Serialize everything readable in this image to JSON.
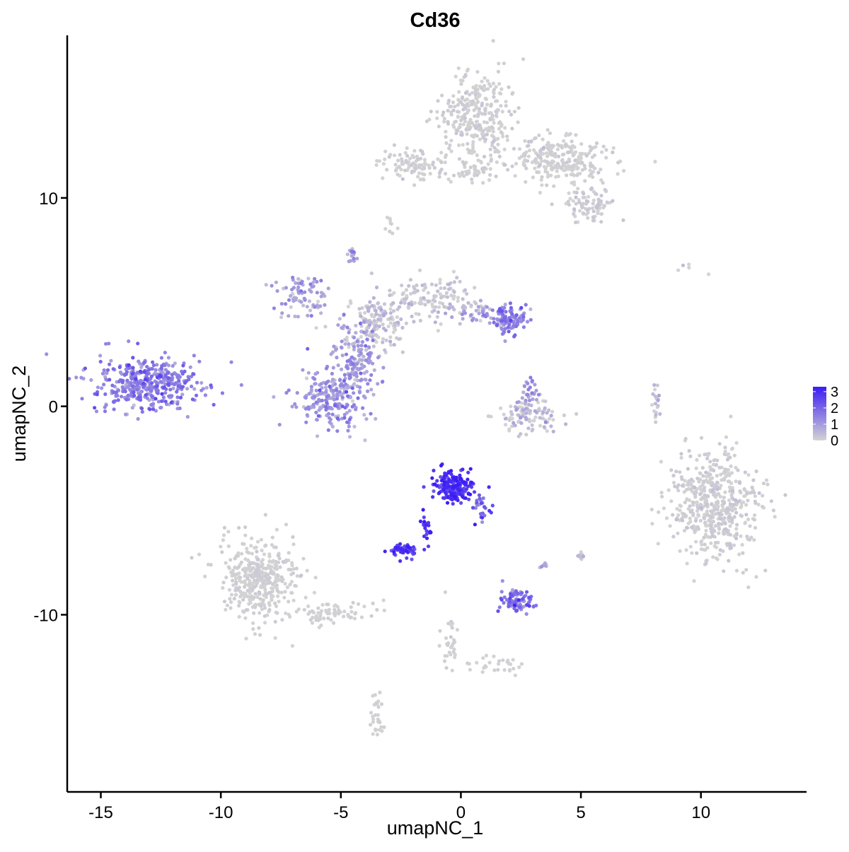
{
  "chart_data": {
    "type": "scatter",
    "title": "Cd36",
    "xlabel": "umapNC_1",
    "ylabel": "umapNC_2",
    "xlim": [
      -16.4,
      14.4
    ],
    "ylim": [
      -18.5,
      17.8
    ],
    "xticks": [
      -15,
      -10,
      -5,
      0,
      5,
      10
    ],
    "xtick_labels": [
      "-15",
      "-10",
      "-5",
      "0",
      "5",
      "10"
    ],
    "yticks": [
      -10,
      0,
      10
    ],
    "ytick_labels": [
      "-10",
      "0",
      "10"
    ],
    "grid": false,
    "legend": {
      "placement": "right",
      "ticks": [
        0,
        1,
        2,
        3
      ],
      "tick_labels": [
        "0",
        "1",
        "2",
        "3"
      ],
      "min": 0,
      "max": 3.3,
      "low_color": "#d3d3d3",
      "high_color": "#3b1cf5"
    },
    "colors": {
      "low": "#d3d3d3",
      "high": "#3b1cf5",
      "axis": "#000000"
    },
    "clusters": [
      {
        "id": "left-blob",
        "cx": -13.0,
        "cy": 1.1,
        "sx": 1.3,
        "sy": 0.75,
        "n": 420,
        "expr_mean": 1.45,
        "expr_sd": 0.45
      },
      {
        "id": "top-tall",
        "cx": 0.7,
        "cy": 14.0,
        "sx": 0.9,
        "sy": 1.3,
        "n": 300,
        "expr_mean": 0.05,
        "expr_sd": 0.1
      },
      {
        "id": "top-right-arm",
        "cx": 4.2,
        "cy": 11.8,
        "sx": 1.2,
        "sy": 0.6,
        "n": 260,
        "expr_mean": 0.05,
        "expr_sd": 0.1
      },
      {
        "id": "top-right-tip",
        "cx": 5.3,
        "cy": 9.7,
        "sx": 0.6,
        "sy": 0.5,
        "n": 90,
        "expr_mean": 0.1,
        "expr_sd": 0.15
      },
      {
        "id": "top-left-arm",
        "cx": -2.0,
        "cy": 11.6,
        "sx": 0.8,
        "sy": 0.4,
        "n": 90,
        "expr_mean": 0.05,
        "expr_sd": 0.1
      },
      {
        "id": "top-bridge",
        "cx": 0.3,
        "cy": 11.2,
        "sx": 0.7,
        "sy": 0.3,
        "n": 40,
        "expr_mean": 0.05,
        "expr_sd": 0.1
      },
      {
        "id": "mid-bottom-left",
        "cx": -5.5,
        "cy": 0.3,
        "sx": 0.9,
        "sy": 0.8,
        "n": 200,
        "expr_mean": 1.05,
        "expr_sd": 0.45
      },
      {
        "id": "mid-center",
        "cx": -4.3,
        "cy": 2.2,
        "sx": 0.6,
        "sy": 1.0,
        "n": 150,
        "expr_mean": 0.9,
        "expr_sd": 0.45
      },
      {
        "id": "mid-hub",
        "cx": -3.5,
        "cy": 4.0,
        "sx": 0.9,
        "sy": 0.7,
        "n": 160,
        "expr_mean": 0.3,
        "expr_sd": 0.3
      },
      {
        "id": "mid-left-arm",
        "cx": -6.6,
        "cy": 5.2,
        "sx": 0.6,
        "sy": 0.6,
        "n": 80,
        "expr_mean": 0.85,
        "expr_sd": 0.45
      },
      {
        "id": "mid-top-right",
        "cx": -1.2,
        "cy": 5.2,
        "sx": 0.9,
        "sy": 0.6,
        "n": 120,
        "expr_mean": 0.2,
        "expr_sd": 0.2
      },
      {
        "id": "mid-right-blob",
        "cx": 2.0,
        "cy": 4.2,
        "sx": 0.5,
        "sy": 0.4,
        "n": 110,
        "expr_mean": 1.35,
        "expr_sd": 0.5
      },
      {
        "id": "mid-right-link",
        "cx": 0.6,
        "cy": 4.4,
        "sx": 0.6,
        "sy": 0.3,
        "n": 40,
        "expr_mean": 0.6,
        "expr_sd": 0.4
      },
      {
        "id": "mid-top-spike",
        "cx": -4.6,
        "cy": 7.2,
        "sx": 0.15,
        "sy": 0.3,
        "n": 16,
        "expr_mean": 1.0,
        "expr_sd": 0.5
      },
      {
        "id": "center-arc",
        "cx": 3.0,
        "cy": -0.5,
        "sx": 0.7,
        "sy": 0.45,
        "n": 110,
        "expr_mean": 0.3,
        "expr_sd": 0.35
      },
      {
        "id": "center-arc-top",
        "cx": 2.9,
        "cy": 0.7,
        "sx": 0.25,
        "sy": 0.4,
        "n": 25,
        "expr_mean": 0.9,
        "expr_sd": 0.5
      },
      {
        "id": "small-right-streak",
        "cx": 8.1,
        "cy": 0.2,
        "sx": 0.15,
        "sy": 0.5,
        "n": 20,
        "expr_mean": 0.2,
        "expr_sd": 0.3
      },
      {
        "id": "right-blob",
        "cx": 10.6,
        "cy": -4.7,
        "sx": 1.05,
        "sy": 1.5,
        "n": 520,
        "expr_mean": 0.06,
        "expr_sd": 0.12
      },
      {
        "id": "left-bottom-blob",
        "cx": -8.3,
        "cy": -8.2,
        "sx": 1.0,
        "sy": 1.2,
        "n": 400,
        "expr_mean": 0.03,
        "expr_sd": 0.08
      },
      {
        "id": "left-bottom-tail",
        "cx": -5.5,
        "cy": -9.9,
        "sx": 1.0,
        "sy": 0.3,
        "n": 70,
        "expr_mean": 0.02,
        "expr_sd": 0.05
      },
      {
        "id": "center-high",
        "cx": -0.3,
        "cy": -3.8,
        "sx": 0.5,
        "sy": 0.45,
        "n": 190,
        "expr_mean": 2.8,
        "expr_sd": 0.4
      },
      {
        "id": "center-high-tail",
        "cx": 0.9,
        "cy": -4.9,
        "sx": 0.25,
        "sy": 0.35,
        "n": 25,
        "expr_mean": 2.1,
        "expr_sd": 0.5
      },
      {
        "id": "center-high-stem",
        "cx": -1.4,
        "cy": -5.7,
        "sx": 0.2,
        "sy": 0.5,
        "n": 20,
        "expr_mean": 2.9,
        "expr_sd": 0.3
      },
      {
        "id": "center-high-small",
        "cx": -2.4,
        "cy": -6.9,
        "sx": 0.3,
        "sy": 0.2,
        "n": 60,
        "expr_mean": 2.6,
        "expr_sd": 0.45
      },
      {
        "id": "bottom-right-mid",
        "cx": 2.3,
        "cy": -9.3,
        "sx": 0.4,
        "sy": 0.35,
        "n": 90,
        "expr_mean": 1.7,
        "expr_sd": 0.5
      },
      {
        "id": "bottom-streak",
        "cx": -0.4,
        "cy": -11.2,
        "sx": 0.25,
        "sy": 0.8,
        "n": 30,
        "expr_mean": 0.03,
        "expr_sd": 0.05
      },
      {
        "id": "bottom-streak-right",
        "cx": 1.5,
        "cy": -12.3,
        "sx": 0.6,
        "sy": 0.25,
        "n": 30,
        "expr_mean": 0.03,
        "expr_sd": 0.05
      },
      {
        "id": "bottom-tail",
        "cx": -3.5,
        "cy": -14.8,
        "sx": 0.2,
        "sy": 0.7,
        "n": 30,
        "expr_mean": 0.02,
        "expr_sd": 0.04
      },
      {
        "id": "top-small",
        "cx": -2.9,
        "cy": 8.7,
        "sx": 0.15,
        "sy": 0.3,
        "n": 10,
        "expr_mean": 0.02,
        "expr_sd": 0.04
      },
      {
        "id": "right-small-dots",
        "cx": 9.4,
        "cy": 6.7,
        "sx": 0.4,
        "sy": 0.15,
        "n": 5,
        "expr_mean": 0.3,
        "expr_sd": 0.4
      },
      {
        "id": "small-bottom-mid",
        "cx": 3.4,
        "cy": -7.6,
        "sx": 0.1,
        "sy": 0.1,
        "n": 8,
        "expr_mean": 0.5,
        "expr_sd": 0.3
      },
      {
        "id": "small-bottom-mid2",
        "cx": 5.0,
        "cy": -7.2,
        "sx": 0.1,
        "sy": 0.15,
        "n": 10,
        "expr_mean": 0.3,
        "expr_sd": 0.3
      }
    ]
  }
}
